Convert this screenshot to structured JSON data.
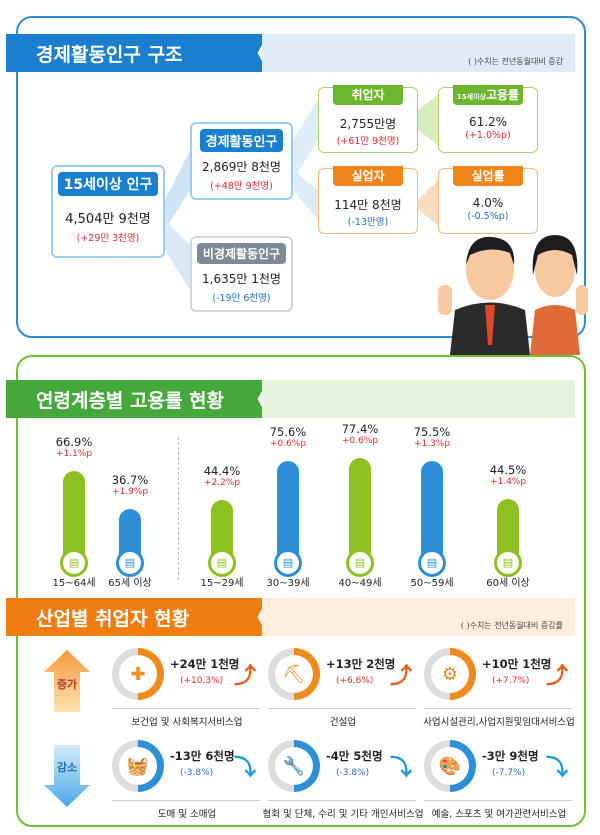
{
  "section1": {
    "title": "경제활동인구 구조",
    "note": "( )수치는 전년동월대비 증감",
    "pop15": {
      "label": "15세이상 인구",
      "value": "4,504만 9천명",
      "change": "(+29만 3천명)"
    },
    "active": {
      "label": "경제활동인구",
      "value": "2,869만 8천명",
      "change": "(+48만 9천명)"
    },
    "inactive": {
      "label": "비경제활동인구",
      "value": "1,635만 1천명",
      "change": "(-19만 6천명)"
    },
    "employed": {
      "label": "취업자",
      "value": "2,755만명",
      "change": "(+61만 9천명)"
    },
    "emp_rate": {
      "label_small": "15세이상",
      "label": "고용률",
      "value": "61.2%",
      "change": "(+1.0%p)"
    },
    "unemployed": {
      "label": "실업자",
      "value": "114만 8천명",
      "change": "(-13만명)"
    },
    "unemp_rate": {
      "label": "실업률",
      "value": "4.0%",
      "change": "(-0.5%p)"
    }
  },
  "section2": {
    "title": "연령계층별 고용률 현황"
  },
  "chart_data": {
    "type": "bar",
    "title": "연령계층별 고용률 현황",
    "categories": [
      "15~64세",
      "65세 이상",
      "15~29세",
      "30~39세",
      "40~49세",
      "50~59세",
      "60세 이상"
    ],
    "values": [
      66.9,
      36.7,
      44.4,
      75.6,
      77.4,
      75.5,
      44.5
    ],
    "value_labels": [
      "66.9%",
      "36.7%",
      "44.4%",
      "75.6%",
      "77.4%",
      "75.5%",
      "44.5%"
    ],
    "changes": [
      "+1.1%p",
      "+1.9%p",
      "+2.2%p",
      "+0.6%p",
      "+0.6%p",
      "+1.3%p",
      "+1.4%p"
    ],
    "colors": [
      "#8cc11f",
      "#2e8fd6",
      "#8cc11f",
      "#2e8fd6",
      "#8cc11f",
      "#2e8fd6",
      "#8cc11f"
    ],
    "ylabel": "",
    "xlabel": ""
  },
  "section3": {
    "title": "산업별 취업자 현황",
    "note": "( )수치는 전년동월대비 증감률",
    "increase_label": "증가",
    "decrease_label": "감소",
    "increase": [
      {
        "icon": "first-aid-kit-icon",
        "value": "+24만 1천명",
        "rate": "(+10.3%)",
        "name": "보건업 및 사회복지서비스업"
      },
      {
        "icon": "excavator-icon",
        "value": "+13만 2천명",
        "rate": "(+6.6%)",
        "name": "건설업"
      },
      {
        "icon": "business-support-icon",
        "value": "+10만 1천명",
        "rate": "(+7.7%)",
        "name": "사업시설관리,사업지원및임대서비스업"
      }
    ],
    "decrease": [
      {
        "icon": "shopping-basket-icon",
        "value": "-13만 6천명",
        "rate": "(-3.8%)",
        "name": "도매 및 소매업"
      },
      {
        "icon": "wrench-icon",
        "value": "-4만 5천명",
        "rate": "(-3.8%)",
        "name": "협회 및 단체, 수리 및 기타 개인서비스업"
      },
      {
        "icon": "palette-icon",
        "value": "-3만 9천명",
        "rate": "(-7.7%)",
        "name": "예술, 스포츠 및 여가관련서비스업"
      }
    ]
  }
}
